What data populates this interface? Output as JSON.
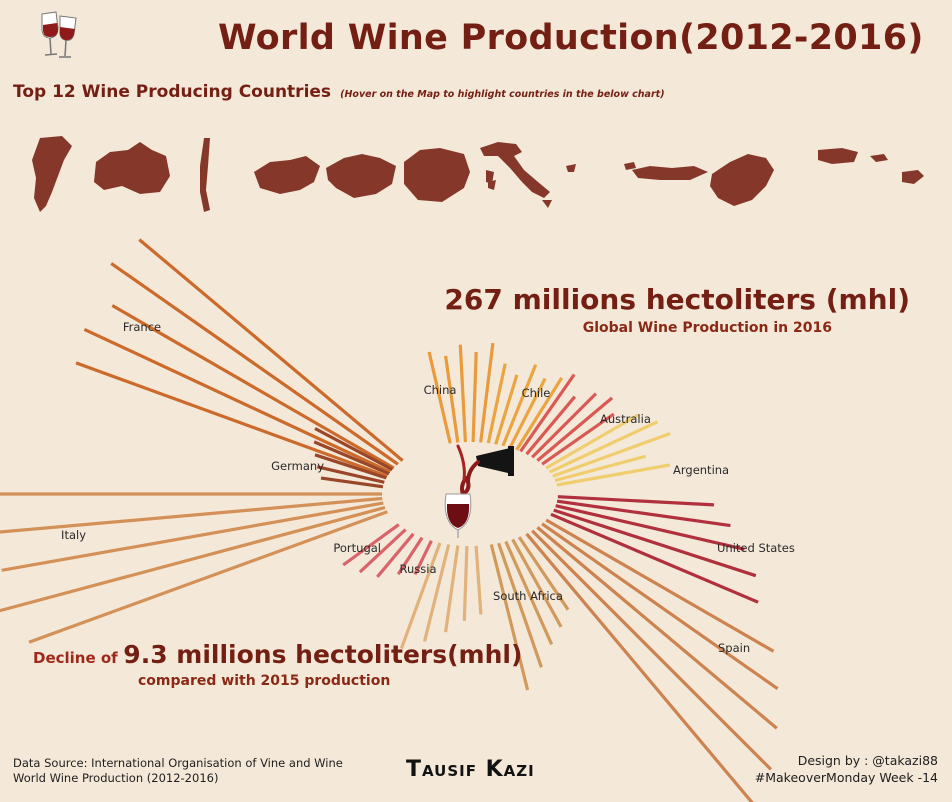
{
  "title": "World Wine Production(2012-2016)",
  "subtitle": "Top 12 Wine Producing Countries",
  "subtitle_note": "(Hover on the Map to highlight countries in the below chart)",
  "global_metric": {
    "value": "267 millions hectoliters (mhl)",
    "caption": "Global Wine Production in 2016"
  },
  "decline_metric": {
    "prefix": "Decline of",
    "value": "9.3 millions hectoliters(mhl)",
    "caption": "compared with 2015 production"
  },
  "footer": {
    "source_line1": "Data Source: International Organisation of Vine and Wine",
    "source_line2": "World Wine Production (2012-2016)",
    "author": "Tausif Kazi",
    "design_line1": "Design by : @takazi88",
    "design_line2": "#MakeoverMonday Week -14"
  },
  "map_countries": [
    "Argentina",
    "Australia",
    "Chile",
    "Germany",
    "France",
    "Portugal",
    "Italy",
    "Russia",
    "China",
    "South Africa",
    "Spain",
    "United States"
  ],
  "chart_data": {
    "type": "radial-bar",
    "unit": "relative bar length (scale not printed)",
    "years": 5,
    "series": [
      {
        "name": "France",
        "color": "#cc6a2b",
        "values": [
          265,
          270,
          260,
          280,
          275
        ]
      },
      {
        "name": "China",
        "color": "#e89a3c",
        "values": [
          75,
          70,
          78,
          72,
          80
        ]
      },
      {
        "name": "Chile",
        "color": "#eaa540",
        "values": [
          65,
          58,
          70,
          62,
          68
        ]
      },
      {
        "name": "Australia",
        "color": "#d95a55",
        "values": [
          75,
          60,
          72,
          78,
          70
        ]
      },
      {
        "name": "Argentina",
        "color": "#f0cd6e",
        "values": [
          85,
          95,
          100,
          75,
          92
        ]
      },
      {
        "name": "United States",
        "color": "#b0303e",
        "values": [
          125,
          140,
          155,
          170,
          180
        ]
      },
      {
        "name": "Spain",
        "color": "#cc8350",
        "values": [
          210,
          230,
          250,
          270,
          290
        ]
      },
      {
        "name": "South Africa",
        "color": "#d09a5c",
        "values": [
          70,
          80,
          90,
          105,
          120
        ]
      },
      {
        "name": "Russia",
        "color": "#e2b27c",
        "values": [
          55,
          60,
          70,
          80,
          90
        ]
      },
      {
        "name": "Portugal",
        "color": "#d8646a",
        "values": [
          30,
          35,
          45,
          50,
          55
        ]
      },
      {
        "name": "Italy",
        "color": "#d39158",
        "values": [
          305,
          330,
          310,
          330,
          320
        ]
      },
      {
        "name": "Germany",
        "color": "#9a4628",
        "values": [
          50,
          55,
          60,
          65,
          70
        ]
      }
    ]
  }
}
